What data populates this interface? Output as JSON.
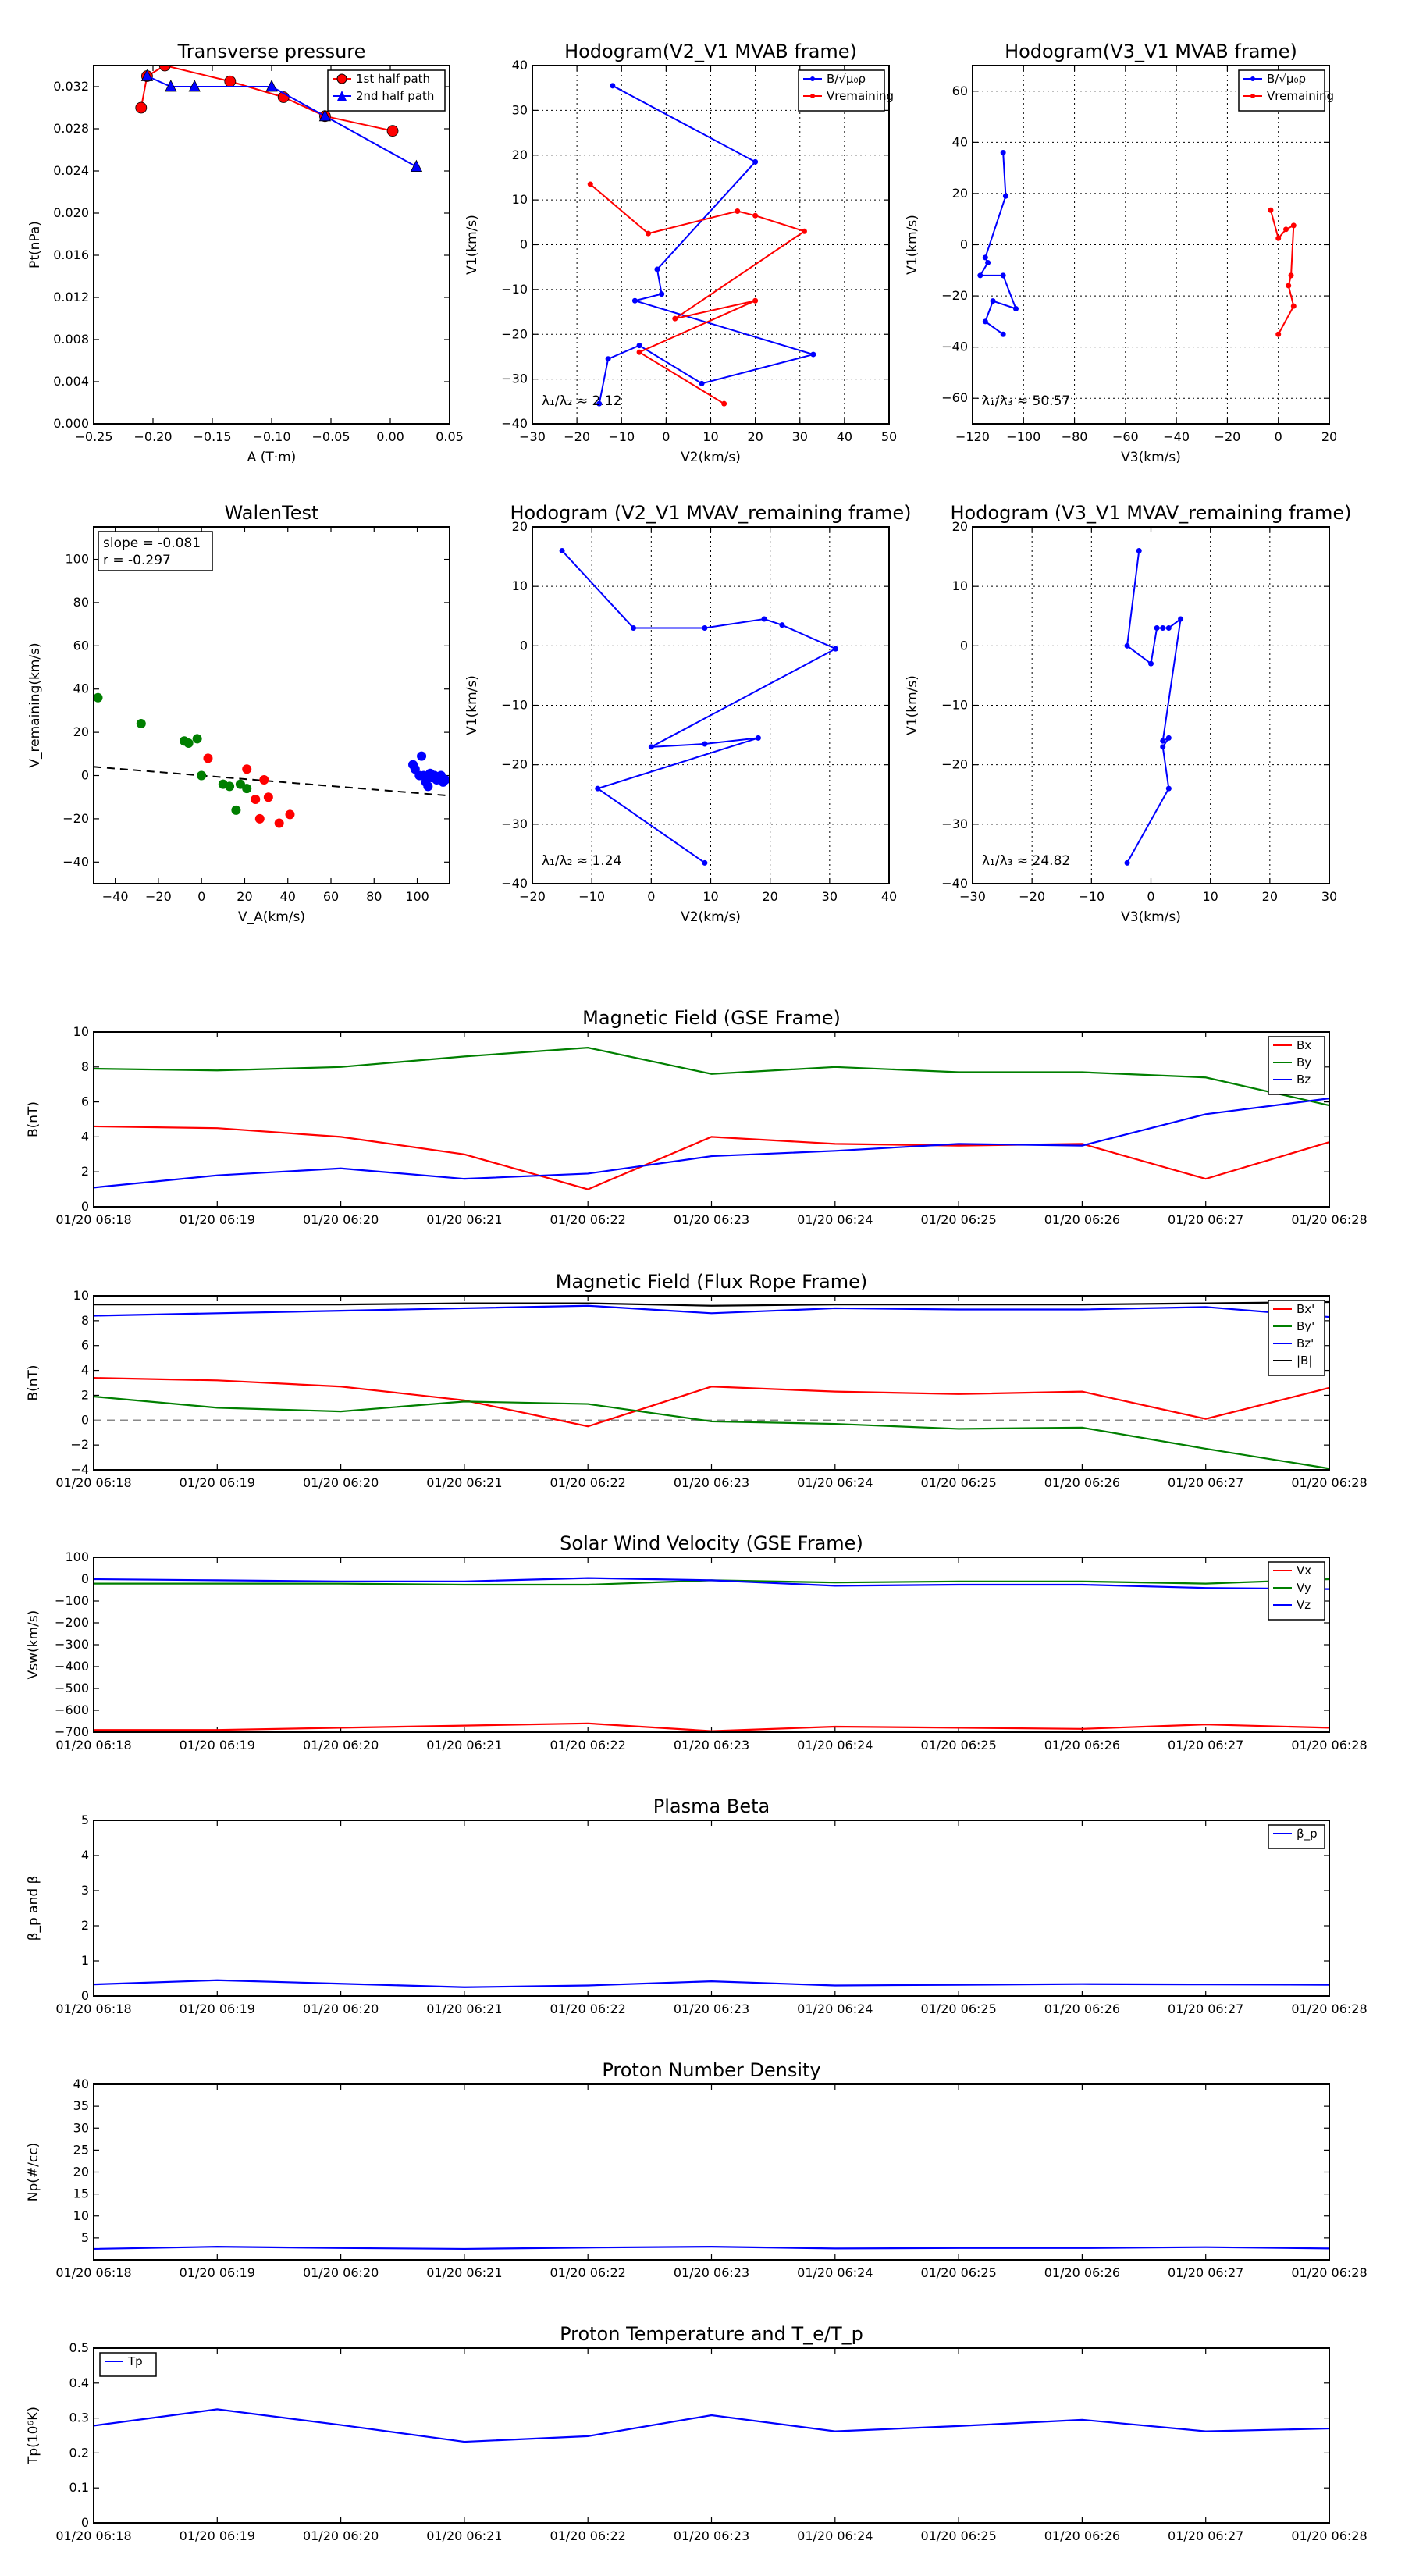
{
  "chart_data": [
    {
      "id": "tp",
      "type": "scatter",
      "title": "Transverse pressure",
      "xlabel": "A (T·m)",
      "ylabel": "Pt(nPa)",
      "xlim": [
        -0.25,
        0.05
      ],
      "ylim": [
        0,
        0.034
      ],
      "xticks": [
        -0.25,
        -0.2,
        -0.15,
        -0.1,
        -0.05,
        0.0,
        0.05
      ],
      "xtick_labels": [
        "−0.25",
        "−0.20",
        "−0.15",
        "−0.10",
        "−0.05",
        "0.00",
        "0.05"
      ],
      "yticks": [
        0,
        0.004,
        0.008,
        0.012,
        0.016,
        0.02,
        0.024,
        0.028,
        0.032
      ],
      "ytick_labels": [
        "0.000",
        "0.004",
        "0.008",
        "0.012",
        "0.016",
        "0.020",
        "0.024",
        "0.028",
        "0.032"
      ],
      "grid": false,
      "legend": "top-right",
      "series": [
        {
          "name": "1st half path",
          "color": "#ff0000",
          "marker": "circle",
          "x": [
            -0.21,
            -0.205,
            -0.19,
            -0.135,
            -0.09,
            -0.055,
            0.002
          ],
          "y": [
            0.03,
            0.033,
            0.034,
            0.0325,
            0.031,
            0.0292,
            0.0278
          ]
        },
        {
          "name": "2nd half path",
          "color": "#0000ff",
          "marker": "triangle",
          "x": [
            -0.205,
            -0.185,
            -0.165,
            -0.1,
            -0.055,
            0.022
          ],
          "y": [
            0.033,
            0.032,
            0.032,
            0.032,
            0.0292,
            0.0244
          ]
        }
      ]
    },
    {
      "id": "h1",
      "type": "line",
      "title": "Hodogram(V2_V1 MVAB frame)",
      "xlabel": "V2(km/s)",
      "ylabel": "V1(km/s)",
      "xlim": [
        -30,
        50
      ],
      "ylim": [
        -40,
        40
      ],
      "xticks": [
        -30,
        -20,
        -10,
        0,
        10,
        20,
        30,
        40,
        50
      ],
      "yticks": [
        -40,
        -30,
        -20,
        -10,
        0,
        10,
        20,
        30,
        40
      ],
      "grid": true,
      "legend": "top-right",
      "annotation": "λ₁/λ₂ ≈ 2.12",
      "series": [
        {
          "name": "B/√μ₀ρ",
          "color": "#0000ff",
          "x": [
            -12,
            20,
            -2,
            -1,
            -7,
            33,
            8,
            -6,
            -13,
            -15
          ],
          "y": [
            35.5,
            18.5,
            -5.5,
            -11,
            -12.5,
            -24.5,
            -31,
            -22.5,
            -25.5,
            -35.5
          ]
        },
        {
          "name": "Vremaining",
          "color": "#ff0000",
          "x": [
            -17,
            -4,
            16,
            20,
            31,
            2,
            20,
            -6,
            13
          ],
          "y": [
            13.5,
            2.5,
            7.5,
            6.5,
            3,
            -16.5,
            -12.5,
            -24,
            -35.5
          ]
        }
      ]
    },
    {
      "id": "h2",
      "type": "line",
      "title": "Hodogram(V3_V1 MVAB frame)",
      "xlabel": "V3(km/s)",
      "ylabel": "V1(km/s)",
      "xlim": [
        -120,
        20
      ],
      "ylim": [
        -70,
        70
      ],
      "xticks": [
        -120,
        -100,
        -80,
        -60,
        -40,
        -20,
        0,
        20
      ],
      "yticks": [
        -60,
        -40,
        -20,
        0,
        20,
        40,
        60
      ],
      "grid": true,
      "legend": "top-right",
      "annotation": "λ₁/λ₃ ≈ 50.57",
      "series": [
        {
          "name": "B/√μ₀ρ",
          "color": "#0000ff",
          "x": [
            -108,
            -107,
            -115,
            -114,
            -117,
            -108,
            -103,
            -112,
            -115,
            -108
          ],
          "y": [
            36,
            19,
            -5,
            -7,
            -12,
            -12,
            -25,
            -22,
            -30,
            -35
          ]
        },
        {
          "name": "Vremaining",
          "color": "#ff0000",
          "x": [
            -3,
            0,
            3,
            6,
            5,
            4,
            6,
            0
          ],
          "y": [
            13.5,
            2.5,
            6,
            7.5,
            -12,
            -16,
            -24,
            -35
          ]
        }
      ]
    },
    {
      "id": "wt",
      "type": "scatter",
      "title": "WalenTest",
      "xlabel": "V_A(km/s)",
      "ylabel": "V_remaining(km/s)",
      "xlim": [
        -50,
        115
      ],
      "ylim": [
        -50,
        115
      ],
      "xticks": [
        -40,
        -20,
        0,
        20,
        40,
        60,
        80,
        100
      ],
      "yticks": [
        -40,
        -20,
        0,
        20,
        40,
        60,
        80,
        100
      ],
      "grid": false,
      "annotation_lines": [
        "slope = -0.081",
        "r = -0.297"
      ],
      "fit_line": {
        "slope": -0.081,
        "x": [
          -50,
          115
        ]
      },
      "series": [
        {
          "name": "green",
          "color": "#007f00",
          "x": [
            -48,
            -28,
            -8,
            -6,
            -2,
            0,
            10,
            13,
            16,
            18,
            21
          ],
          "y": [
            36,
            24,
            16,
            15,
            17,
            0,
            -4,
            -5,
            -16,
            -4,
            -6
          ]
        },
        {
          "name": "red",
          "color": "#ff0000",
          "x": [
            3,
            21,
            25,
            27,
            29,
            31,
            36,
            41
          ],
          "y": [
            8,
            3,
            -11,
            -20,
            -2,
            -10,
            -22,
            -18
          ]
        },
        {
          "name": "blue",
          "color": "#0000ff",
          "x": [
            98,
            99,
            101,
            102,
            103,
            104,
            105,
            106,
            107,
            108,
            109,
            110,
            111,
            112,
            113
          ],
          "y": [
            5,
            3,
            0,
            9,
            0,
            -3,
            -5,
            1,
            -1,
            0,
            -2,
            -1,
            0,
            -3,
            -2
          ]
        }
      ]
    },
    {
      "id": "h3",
      "type": "line",
      "title": "Hodogram (V2_V1 MVAV_remaining frame)",
      "xlabel": "V2(km/s)",
      "ylabel": "V1(km/s)",
      "xlim": [
        -20,
        40
      ],
      "ylim": [
        -40,
        20
      ],
      "xticks": [
        -20,
        -10,
        0,
        10,
        20,
        30,
        40
      ],
      "yticks": [
        -40,
        -30,
        -20,
        -10,
        0,
        10,
        20
      ],
      "grid": true,
      "annotation": "λ₁/λ₂ ≈ 1.24",
      "series": [
        {
          "name": "blue",
          "color": "#0000ff",
          "x": [
            -15,
            -3,
            9,
            19,
            22,
            31,
            0,
            9,
            18,
            -9,
            9
          ],
          "y": [
            16,
            3,
            3,
            4.5,
            3.5,
            -0.5,
            -17,
            -16.5,
            -15.5,
            -24,
            -36.5
          ]
        }
      ]
    },
    {
      "id": "h4",
      "type": "line",
      "title": "Hodogram (V3_V1 MVAV_remaining frame)",
      "xlabel": "V3(km/s)",
      "ylabel": "V1(km/s)",
      "xlim": [
        -30,
        30
      ],
      "ylim": [
        -40,
        20
      ],
      "xticks": [
        -30,
        -20,
        -10,
        0,
        10,
        20,
        30
      ],
      "yticks": [
        -40,
        -30,
        -20,
        -10,
        0,
        10,
        20
      ],
      "grid": true,
      "annotation": "λ₁/λ₃ ≈ 24.82",
      "series": [
        {
          "name": "blue",
          "color": "#0000ff",
          "x": [
            -2,
            -4,
            0,
            1,
            2,
            3,
            5,
            2,
            3,
            2,
            3,
            -4
          ],
          "y": [
            16,
            0,
            -3,
            3,
            3,
            3,
            4.5,
            -16,
            -15.5,
            -17,
            -24,
            -36.5
          ]
        }
      ]
    },
    {
      "id": "mf",
      "type": "line",
      "title": "Magnetic Field (GSE Frame)",
      "ylabel": "B(nT)",
      "ylim": [
        0,
        10
      ],
      "yticks": [
        0,
        2,
        4,
        6,
        8,
        10
      ],
      "x_labels": [
        "01/20 06:18",
        "01/20 06:19",
        "01/20 06:20",
        "01/20 06:21",
        "01/20 06:22",
        "01/20 06:23",
        "01/20 06:24",
        "01/20 06:25",
        "01/20 06:26",
        "01/20 06:27",
        "01/20 06:28"
      ],
      "grid": false,
      "legend": "top-right",
      "series": [
        {
          "name": "Bx",
          "color": "#ff0000",
          "values": [
            4.6,
            4.5,
            4.0,
            3.0,
            1.0,
            4.0,
            3.6,
            3.5,
            3.6,
            1.6,
            3.7
          ]
        },
        {
          "name": "By",
          "color": "#007f00",
          "values": [
            7.9,
            7.8,
            8.0,
            8.6,
            9.1,
            7.6,
            8.0,
            7.7,
            7.7,
            7.4,
            5.8
          ]
        },
        {
          "name": "Bz",
          "color": "#0000ff",
          "values": [
            1.1,
            1.8,
            2.2,
            1.6,
            1.9,
            2.9,
            3.2,
            3.6,
            3.5,
            5.3,
            6.2
          ]
        }
      ]
    },
    {
      "id": "fr",
      "type": "line",
      "title": "Magnetic Field (Flux Rope Frame)",
      "ylabel": "B(nT)",
      "ylim": [
        -4,
        10
      ],
      "yticks": [
        -4,
        -2,
        0,
        2,
        4,
        6,
        8,
        10
      ],
      "x_labels": [
        "01/20 06:18",
        "01/20 06:19",
        "01/20 06:20",
        "01/20 06:21",
        "01/20 06:22",
        "01/20 06:23",
        "01/20 06:24",
        "01/20 06:25",
        "01/20 06:26",
        "01/20 06:27",
        "01/20 06:28"
      ],
      "grid": false,
      "legend": "top-right",
      "zero_line": true,
      "series": [
        {
          "name": "Bx'",
          "color": "#ff0000",
          "values": [
            3.4,
            3.2,
            2.7,
            1.6,
            -0.5,
            2.7,
            2.3,
            2.1,
            2.3,
            0.1,
            2.6
          ]
        },
        {
          "name": "By'",
          "color": "#007f00",
          "values": [
            1.9,
            1.0,
            0.7,
            1.5,
            1.3,
            -0.1,
            -0.3,
            -0.7,
            -0.6,
            -2.3,
            -3.9
          ]
        },
        {
          "name": "Bz'",
          "color": "#0000ff",
          "values": [
            8.4,
            8.6,
            8.8,
            9.0,
            9.2,
            8.6,
            9.0,
            8.9,
            8.9,
            9.1,
            8.3
          ]
        },
        {
          "name": "|B|",
          "color": "#000000",
          "values": [
            9.3,
            9.3,
            9.3,
            9.4,
            9.4,
            9.2,
            9.3,
            9.3,
            9.3,
            9.4,
            9.5
          ]
        }
      ]
    },
    {
      "id": "sw",
      "type": "line",
      "title": "Solar Wind Velocity (GSE Frame)",
      "ylabel": "Vsw(km/s)",
      "ylim": [
        -700,
        100
      ],
      "yticks": [
        -700,
        -600,
        -500,
        -400,
        -300,
        -200,
        -100,
        0,
        100
      ],
      "x_labels": [
        "01/20 06:18",
        "01/20 06:19",
        "01/20 06:20",
        "01/20 06:21",
        "01/20 06:22",
        "01/20 06:23",
        "01/20 06:24",
        "01/20 06:25",
        "01/20 06:26",
        "01/20 06:27",
        "01/20 06:28"
      ],
      "grid": false,
      "legend": "top-right",
      "series": [
        {
          "name": "Vx",
          "color": "#ff0000",
          "values": [
            -690,
            -690,
            -680,
            -670,
            -660,
            -695,
            -675,
            -680,
            -685,
            -665,
            -680
          ]
        },
        {
          "name": "Vy",
          "color": "#007f00",
          "values": [
            -20,
            -20,
            -20,
            -25,
            -25,
            -5,
            -15,
            -10,
            -10,
            -20,
            0
          ]
        },
        {
          "name": "Vz",
          "color": "#0000ff",
          "values": [
            0,
            -5,
            -10,
            -10,
            5,
            -5,
            -30,
            -25,
            -25,
            -40,
            -45
          ]
        }
      ]
    },
    {
      "id": "pb",
      "type": "line",
      "title": "Plasma Beta",
      "ylabel": "β_p and β",
      "ylim": [
        0,
        5
      ],
      "yticks": [
        0,
        1,
        2,
        3,
        4,
        5
      ],
      "x_labels": [
        "01/20 06:18",
        "01/20 06:19",
        "01/20 06:20",
        "01/20 06:21",
        "01/20 06:22",
        "01/20 06:23",
        "01/20 06:24",
        "01/20 06:25",
        "01/20 06:26",
        "01/20 06:27",
        "01/20 06:28"
      ],
      "grid": false,
      "legend": "top-right",
      "series": [
        {
          "name": "β_p",
          "color": "#0000ff",
          "values": [
            0.33,
            0.45,
            0.35,
            0.25,
            0.3,
            0.42,
            0.3,
            0.32,
            0.34,
            0.33,
            0.32
          ]
        }
      ]
    },
    {
      "id": "pd",
      "type": "line",
      "title": "Proton Number Density",
      "ylabel": "Np(#/cc)",
      "ylim": [
        0,
        40
      ],
      "yticks": [
        5,
        10,
        15,
        20,
        25,
        30,
        35,
        40
      ],
      "x_labels": [
        "01/20 06:18",
        "01/20 06:19",
        "01/20 06:20",
        "01/20 06:21",
        "01/20 06:22",
        "01/20 06:23",
        "01/20 06:24",
        "01/20 06:25",
        "01/20 06:26",
        "01/20 06:27",
        "01/20 06:28"
      ],
      "grid": false,
      "series": [
        {
          "name": "Np",
          "color": "#0000ff",
          "values": [
            2.5,
            3.0,
            2.7,
            2.5,
            2.8,
            3.0,
            2.6,
            2.7,
            2.7,
            2.9,
            2.6
          ]
        }
      ]
    },
    {
      "id": "pt",
      "type": "line",
      "title": "Proton Temperature and T_e/T_p",
      "ylabel": "Tp(10⁶K)",
      "ylim": [
        0,
        0.5
      ],
      "yticks": [
        0.0,
        0.1,
        0.2,
        0.3,
        0.4,
        0.5
      ],
      "x_labels": [
        "01/20 06:18",
        "01/20 06:19",
        "01/20 06:20",
        "01/20 06:21",
        "01/20 06:22",
        "01/20 06:23",
        "01/20 06:24",
        "01/20 06:25",
        "01/20 06:26",
        "01/20 06:27",
        "01/20 06:28"
      ],
      "grid": false,
      "legend": "top-left",
      "series": [
        {
          "name": "Tp",
          "color": "#0000ff",
          "values": [
            0.278,
            0.325,
            0.28,
            0.232,
            0.248,
            0.308,
            0.262,
            0.277,
            0.295,
            0.262,
            0.27
          ]
        }
      ]
    }
  ]
}
